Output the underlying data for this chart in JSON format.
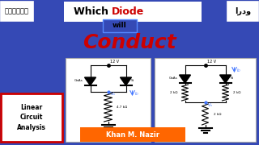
{
  "bg_color": "#3549b5",
  "title_which": "Which ",
  "title_diode": "Diode",
  "title_will": "will",
  "title_conduct": "Conduct",
  "hindi_text": "हिन्दी",
  "urdu_text": "اردو",
  "bottom_label": "Khan M. Nazir",
  "bottom_label_bg": "#FF6600",
  "linear_circuit": "Linear\nCircuit\nAnalysis",
  "circuit_bg": "#ffffff",
  "lca_border": "#cc0000",
  "title_box_bg": "#ffffff",
  "will_border": "#5588ff",
  "conduct_color": "#cc0000",
  "diode_color": "#cc0000",
  "arrow_color": "#4477ff"
}
